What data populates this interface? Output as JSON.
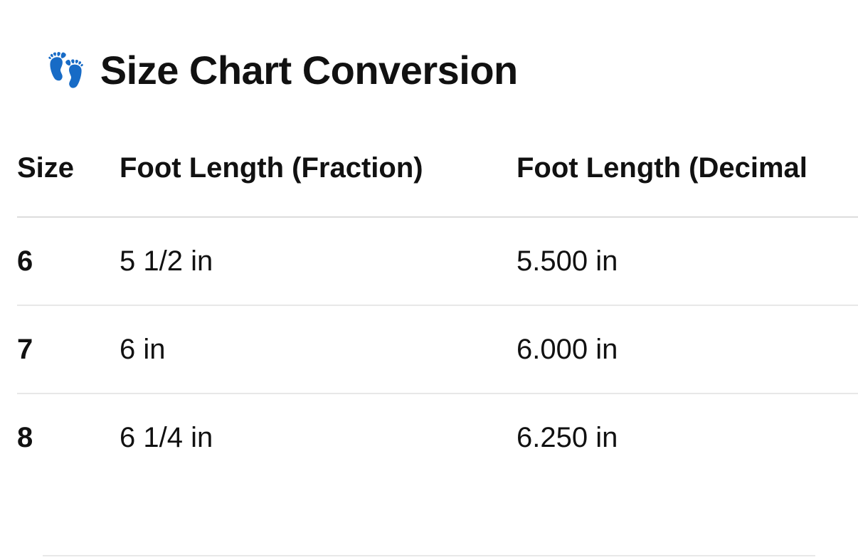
{
  "title": {
    "icon": "footprints-icon",
    "emoji": "👣",
    "text": "Size Chart Conversion"
  },
  "table": {
    "headers": [
      "Size",
      "Foot Length (Fraction)",
      "Foot Length (Decimal"
    ],
    "rows": [
      [
        "6",
        "5 1/2 in",
        "5.500 in"
      ],
      [
        "7",
        "6 in",
        "6.000 in"
      ],
      [
        "8",
        "6 1/4 in",
        "6.250 in"
      ]
    ]
  }
}
